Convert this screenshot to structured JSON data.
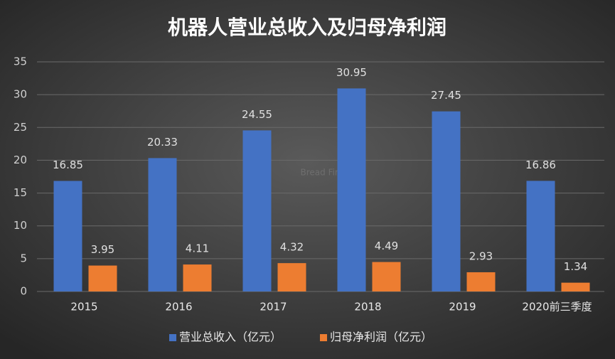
{
  "chart_data": {
    "type": "bar",
    "title": "机器人营业总收入及归母净利润",
    "categories": [
      "2015",
      "2016",
      "2017",
      "2018",
      "2019",
      "2020前三季度"
    ],
    "series": [
      {
        "name": "营业总收入（亿元）",
        "color": "#4472c4",
        "values": [
          16.85,
          20.33,
          24.55,
          30.95,
          27.45,
          16.86
        ]
      },
      {
        "name": "归母净利润（亿元）",
        "color": "#ed7d31",
        "values": [
          3.95,
          4.11,
          4.32,
          4.49,
          2.93,
          1.34
        ]
      }
    ],
    "ylim": [
      0,
      35
    ],
    "yticks": [
      0,
      5,
      10,
      15,
      20,
      25,
      30,
      35
    ],
    "grid": true,
    "legend": "bottom",
    "watermark": "Bread Finance"
  }
}
